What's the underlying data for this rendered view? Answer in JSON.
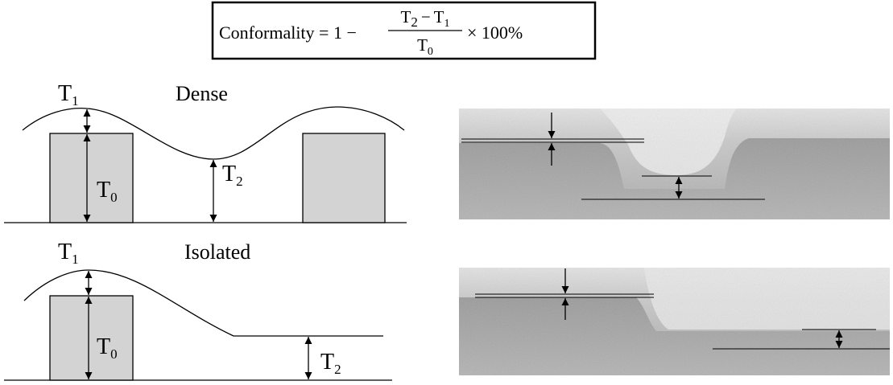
{
  "formula": {
    "label": "Conformality = 1 −",
    "numerator": {
      "a": "T",
      "a_sub": "2",
      "op": "−",
      "b": "T",
      "b_sub": "1"
    },
    "denominator": {
      "base": "T",
      "sub": "0"
    },
    "factor": "× 100%"
  },
  "dense": {
    "title": "Dense",
    "t1": {
      "base": "T",
      "sub": "1"
    },
    "t0": {
      "base": "T",
      "sub": "0"
    },
    "t2": {
      "base": "T",
      "sub": "2"
    }
  },
  "isolated": {
    "title": "Isolated",
    "t1": {
      "base": "T",
      "sub": "1"
    },
    "t0": {
      "base": "T",
      "sub": "0"
    },
    "t2": {
      "base": "T",
      "sub": "2"
    }
  }
}
